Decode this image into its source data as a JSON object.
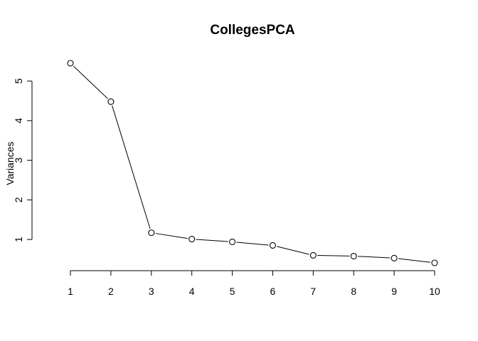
{
  "chart_data": {
    "type": "line",
    "title": "CollegesPCA",
    "xlabel": "",
    "ylabel": "Variances",
    "x": [
      1,
      2,
      3,
      4,
      5,
      6,
      7,
      8,
      9,
      10
    ],
    "values": [
      5.45,
      4.48,
      1.17,
      1.01,
      0.94,
      0.85,
      0.6,
      0.58,
      0.53,
      0.41
    ],
    "x_ticks": [
      "1",
      "2",
      "3",
      "4",
      "5",
      "6",
      "7",
      "8",
      "9",
      "10"
    ],
    "y_ticks": [
      "1",
      "2",
      "3",
      "4",
      "5"
    ],
    "xlim": [
      1,
      10
    ],
    "ylim": [
      0.41,
      5.45
    ],
    "grid": false,
    "marker": "open-circle",
    "line_color": "#000000"
  }
}
